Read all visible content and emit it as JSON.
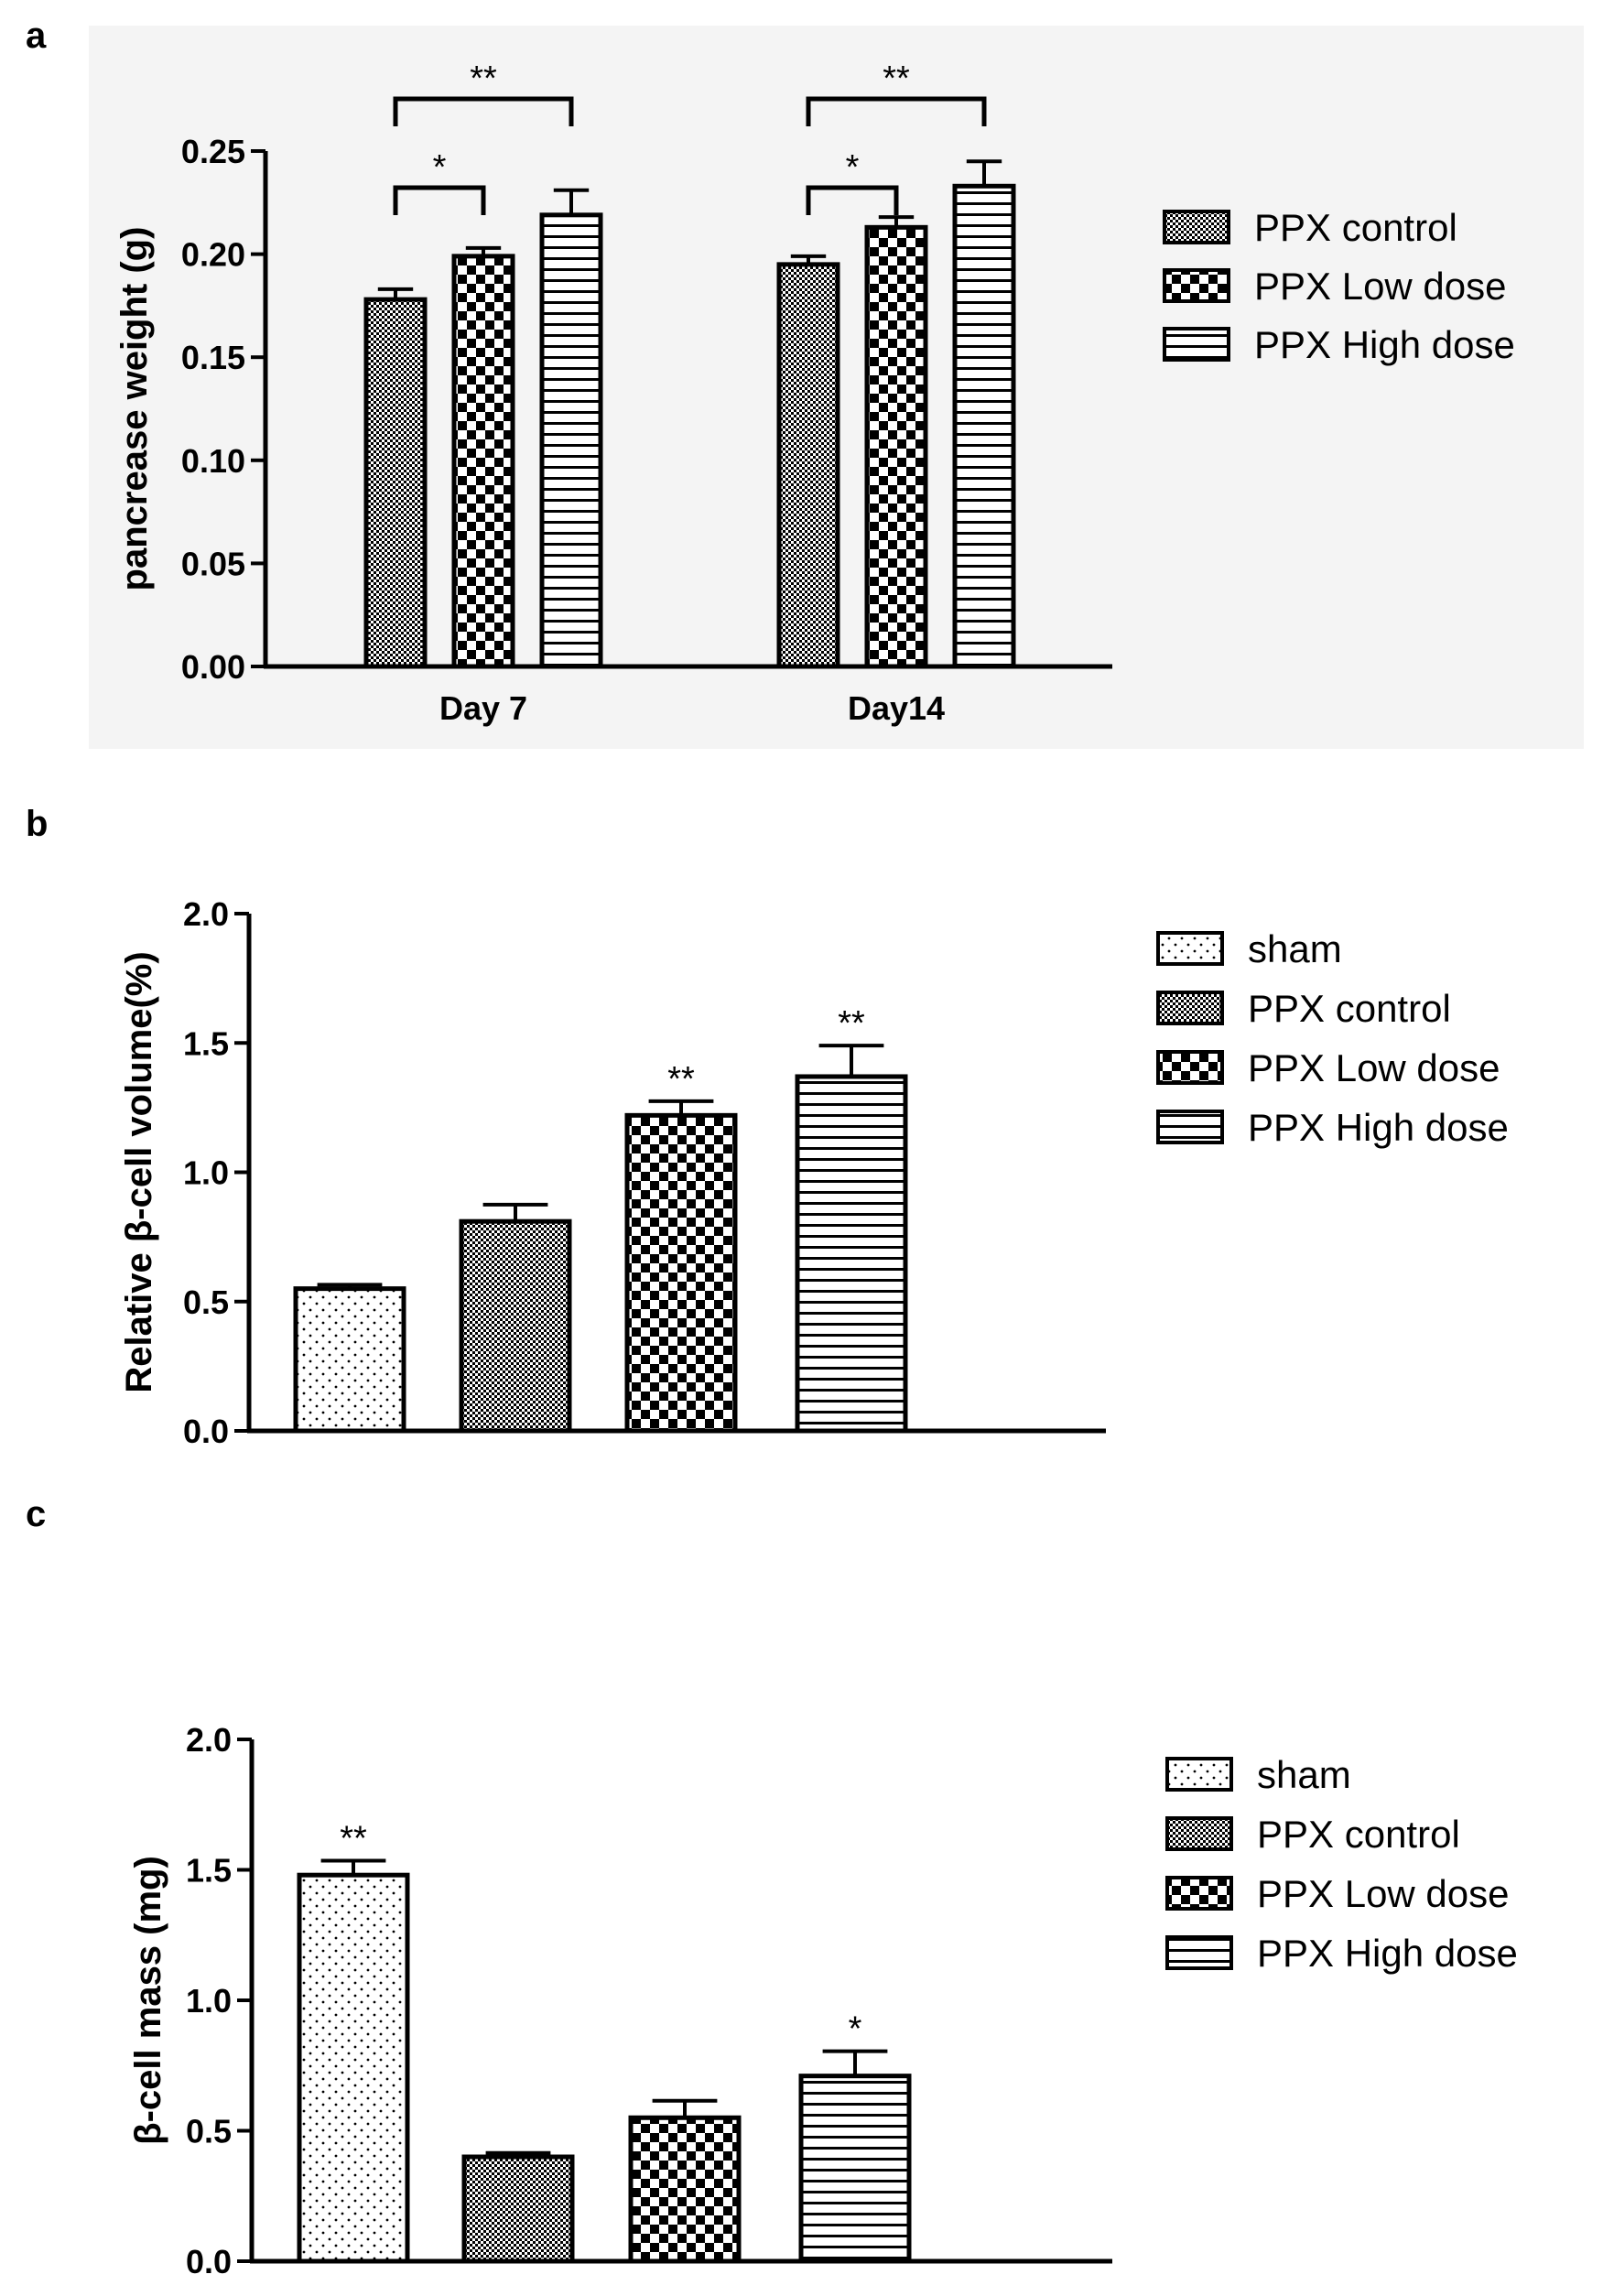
{
  "chart_data": [
    {
      "id": "a",
      "panel_label": "a",
      "type": "bar",
      "ylabel": "pancrease weight (g)",
      "ylim": [
        0,
        0.25
      ],
      "yticks": [
        "0.00",
        "0.05",
        "0.10",
        "0.15",
        "0.20",
        "0.25"
      ],
      "categories": [
        "Day 7",
        "Day14"
      ],
      "series": [
        {
          "name": "PPX control",
          "pattern": "dense",
          "values": [
            0.178,
            0.195
          ],
          "errors": [
            0.005,
            0.004
          ]
        },
        {
          "name": "PPX Low dose",
          "pattern": "checker",
          "values": [
            0.199,
            0.213
          ],
          "errors": [
            0.004,
            0.005
          ]
        },
        {
          "name": "PPX High dose",
          "pattern": "hlines",
          "values": [
            0.219,
            0.233
          ],
          "errors": [
            0.012,
            0.012
          ]
        }
      ],
      "brackets": [
        {
          "group": 0,
          "from": 0,
          "to": 1,
          "label": "*"
        },
        {
          "group": 0,
          "from": 0,
          "to": 2,
          "label": "**"
        },
        {
          "group": 1,
          "from": 0,
          "to": 1,
          "label": "*"
        },
        {
          "group": 1,
          "from": 0,
          "to": 2,
          "label": "**"
        }
      ],
      "legend": [
        "PPX control",
        "PPX Low dose",
        "PPX High dose"
      ],
      "legend_position": "right"
    },
    {
      "id": "b",
      "panel_label": "b",
      "type": "bar",
      "ylabel": "Relative β-cell volume(%)",
      "ylim": [
        0,
        2.0
      ],
      "yticks": [
        "0.0",
        "0.5",
        "1.0",
        "1.5",
        "2.0"
      ],
      "categories": [
        "sham",
        "PPX control",
        "PPX Low dose",
        "PPX High dose"
      ],
      "values": [
        0.55,
        0.81,
        1.22,
        1.37
      ],
      "errors": [
        0.015,
        0.065,
        0.055,
        0.12
      ],
      "patterns": [
        "dots",
        "dense",
        "checker",
        "hlines"
      ],
      "significance": [
        "",
        "",
        "**",
        "**"
      ],
      "legend": [
        "sham",
        "PPX control",
        "PPX Low dose",
        "PPX High dose"
      ],
      "legend_position": "right"
    },
    {
      "id": "c",
      "panel_label": "c",
      "type": "bar",
      "ylabel": "β-cell mass (mg)",
      "ylim": [
        0,
        2.0
      ],
      "yticks": [
        "0.0",
        "0.5",
        "1.0",
        "1.5",
        "2.0"
      ],
      "categories": [
        "sham",
        "PPX control",
        "PPX Low dose",
        "PPX High dose"
      ],
      "values": [
        1.48,
        0.4,
        0.55,
        0.71
      ],
      "errors": [
        0.055,
        0.015,
        0.065,
        0.095
      ],
      "patterns": [
        "dots",
        "dense",
        "checker",
        "hlines"
      ],
      "significance": [
        "**",
        "",
        "",
        "*"
      ],
      "legend": [
        "sham",
        "PPX control",
        "PPX Low dose",
        "PPX High dose"
      ],
      "legend_position": "right"
    }
  ]
}
